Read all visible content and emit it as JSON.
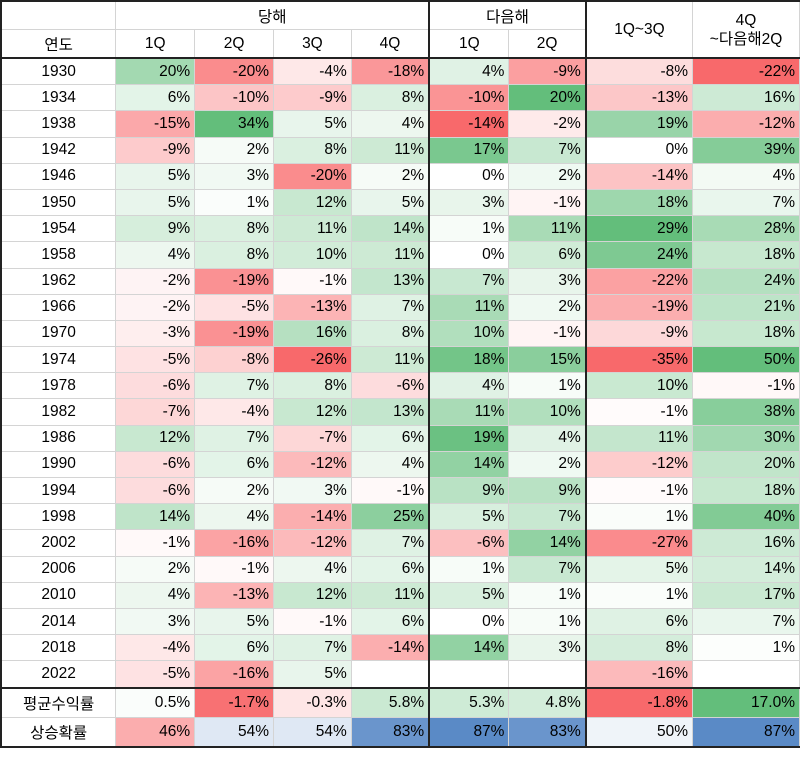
{
  "header": {
    "group_current": "당해",
    "group_next": "다음해",
    "cum1": "1Q~3Q",
    "cum2_line1": "4Q",
    "cum2_line2": "~다음해2Q",
    "year_label": "연도",
    "quarters": [
      "1Q",
      "2Q",
      "3Q",
      "4Q",
      "1Q",
      "2Q"
    ]
  },
  "rows": [
    {
      "year": "1930",
      "v": [
        "20%",
        "-20%",
        "-4%",
        "-18%",
        "4%",
        "-9%",
        "-8%",
        "-22%"
      ]
    },
    {
      "year": "1934",
      "v": [
        "6%",
        "-10%",
        "-9%",
        "8%",
        "-10%",
        "20%",
        "-13%",
        "16%"
      ]
    },
    {
      "year": "1938",
      "v": [
        "-15%",
        "34%",
        "5%",
        "4%",
        "-14%",
        "-2%",
        "19%",
        "-12%"
      ]
    },
    {
      "year": "1942",
      "v": [
        "-9%",
        "2%",
        "8%",
        "11%",
        "17%",
        "7%",
        "0%",
        "39%"
      ]
    },
    {
      "year": "1946",
      "v": [
        "5%",
        "3%",
        "-20%",
        "2%",
        "0%",
        "2%",
        "-14%",
        "4%"
      ]
    },
    {
      "year": "1950",
      "v": [
        "5%",
        "1%",
        "12%",
        "5%",
        "3%",
        "-1%",
        "18%",
        "7%"
      ]
    },
    {
      "year": "1954",
      "v": [
        "9%",
        "8%",
        "11%",
        "14%",
        "1%",
        "11%",
        "29%",
        "28%"
      ]
    },
    {
      "year": "1958",
      "v": [
        "4%",
        "8%",
        "10%",
        "11%",
        "0%",
        "6%",
        "24%",
        "18%"
      ]
    },
    {
      "year": "1962",
      "v": [
        "-2%",
        "-19%",
        "-1%",
        "13%",
        "7%",
        "3%",
        "-22%",
        "24%"
      ]
    },
    {
      "year": "1966",
      "v": [
        "-2%",
        "-5%",
        "-13%",
        "7%",
        "11%",
        "2%",
        "-19%",
        "21%"
      ]
    },
    {
      "year": "1970",
      "v": [
        "-3%",
        "-19%",
        "16%",
        "8%",
        "10%",
        "-1%",
        "-9%",
        "18%"
      ]
    },
    {
      "year": "1974",
      "v": [
        "-5%",
        "-8%",
        "-26%",
        "11%",
        "18%",
        "15%",
        "-35%",
        "50%"
      ]
    },
    {
      "year": "1978",
      "v": [
        "-6%",
        "7%",
        "8%",
        "-6%",
        "4%",
        "1%",
        "10%",
        "-1%"
      ]
    },
    {
      "year": "1982",
      "v": [
        "-7%",
        "-4%",
        "12%",
        "13%",
        "11%",
        "10%",
        "-1%",
        "38%"
      ]
    },
    {
      "year": "1986",
      "v": [
        "12%",
        "7%",
        "-7%",
        "6%",
        "19%",
        "4%",
        "11%",
        "30%"
      ]
    },
    {
      "year": "1990",
      "v": [
        "-6%",
        "6%",
        "-12%",
        "4%",
        "14%",
        "2%",
        "-12%",
        "20%"
      ]
    },
    {
      "year": "1994",
      "v": [
        "-6%",
        "2%",
        "3%",
        "-1%",
        "9%",
        "9%",
        "-1%",
        "18%"
      ]
    },
    {
      "year": "1998",
      "v": [
        "14%",
        "4%",
        "-14%",
        "25%",
        "5%",
        "7%",
        "1%",
        "40%"
      ]
    },
    {
      "year": "2002",
      "v": [
        "-1%",
        "-16%",
        "-12%",
        "7%",
        "-6%",
        "14%",
        "-27%",
        "16%"
      ]
    },
    {
      "year": "2006",
      "v": [
        "2%",
        "-1%",
        "4%",
        "6%",
        "1%",
        "7%",
        "5%",
        "14%"
      ]
    },
    {
      "year": "2010",
      "v": [
        "4%",
        "-13%",
        "12%",
        "11%",
        "5%",
        "1%",
        "1%",
        "17%"
      ]
    },
    {
      "year": "2014",
      "v": [
        "3%",
        "5%",
        "-1%",
        "6%",
        "0%",
        "1%",
        "6%",
        "7%"
      ]
    },
    {
      "year": "2018",
      "v": [
        "-4%",
        "6%",
        "7%",
        "-14%",
        "14%",
        "3%",
        "8%",
        "1%"
      ]
    },
    {
      "year": "2022",
      "v": [
        "-5%",
        "-16%",
        "5%",
        "",
        "",
        "",
        "-16%",
        ""
      ]
    }
  ],
  "avg": {
    "label": "평균수익률",
    "v": [
      "0.5%",
      "-1.7%",
      "-0.3%",
      "5.8%",
      "5.3%",
      "4.8%",
      "-1.8%",
      "17.0%"
    ]
  },
  "prob": {
    "label": "상승확률",
    "v": [
      "46%",
      "54%",
      "54%",
      "83%",
      "87%",
      "83%",
      "50%",
      "87%"
    ]
  },
  "colors": {
    "pos": "#63be7b",
    "neg": "#f8696b",
    "blue": "#5a8ac6",
    "white": "#ffffff"
  }
}
